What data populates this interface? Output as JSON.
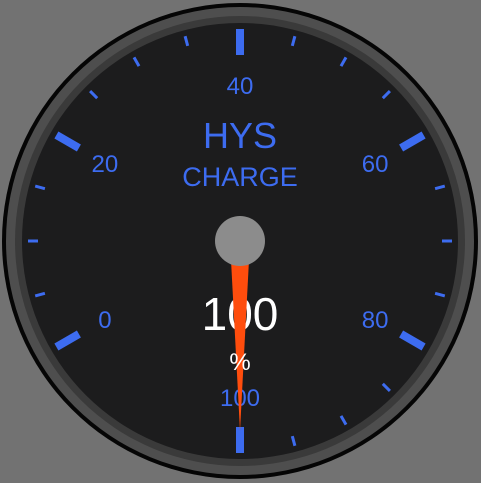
{
  "gauge": {
    "title": "HYS",
    "subtitle": "CHARGE",
    "value_text": "100",
    "unit": "%",
    "value": 100,
    "min": 0,
    "max": 100,
    "tick_labels": [
      "0",
      "20",
      "40",
      "60",
      "80",
      "100"
    ],
    "colors": {
      "background": "#727272",
      "face": "#1c1c1d",
      "bezel": "#4d4d4d",
      "accent": "#3d6cf0",
      "needle": "#ff4d0d",
      "hub": "#8c8c8c",
      "value_text": "#ffffff"
    }
  }
}
